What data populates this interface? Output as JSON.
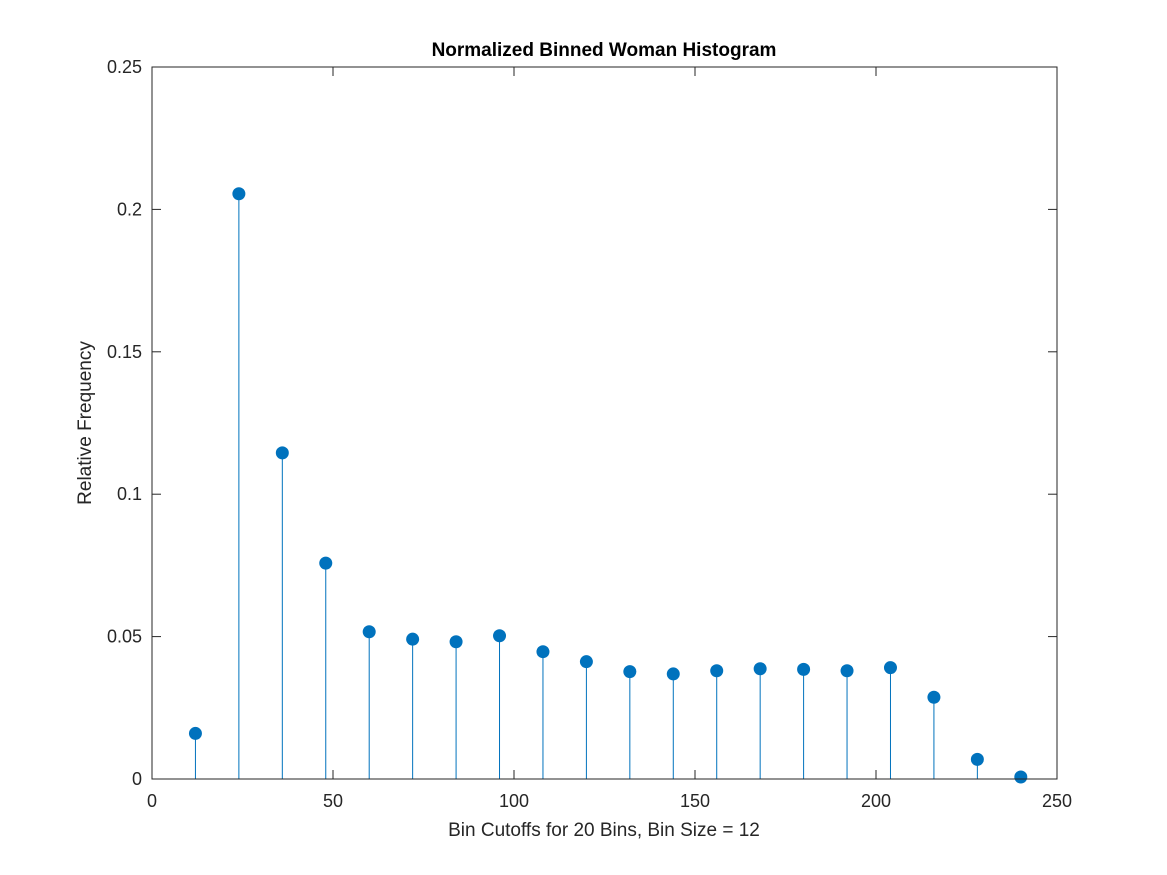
{
  "chart_data": {
    "type": "stem",
    "title": "Normalized Binned Woman Histogram",
    "xlabel": "Bin Cutoffs for 20 Bins, Bin Size = 12",
    "ylabel": "Relative Frequency",
    "xlim": [
      0,
      250
    ],
    "ylim": [
      0,
      0.25
    ],
    "xticks": [
      0,
      50,
      100,
      150,
      200,
      250
    ],
    "yticks": [
      0,
      0.05,
      0.1,
      0.15,
      0.2,
      0.25
    ],
    "xtick_labels": [
      "0",
      "50",
      "100",
      "150",
      "200",
      "250"
    ],
    "ytick_labels": [
      "0",
      "0.05",
      "0.1",
      "0.15",
      "0.2",
      "0.25"
    ],
    "grid": false,
    "color": "#0072BD",
    "x": [
      12,
      24,
      36,
      48,
      60,
      72,
      84,
      96,
      108,
      120,
      132,
      144,
      156,
      168,
      180,
      192,
      204,
      216,
      228,
      240
    ],
    "y": [
      0.016,
      0.2055,
      0.1145,
      0.0758,
      0.0517,
      0.0491,
      0.0482,
      0.0503,
      0.0447,
      0.0412,
      0.0377,
      0.0369,
      0.038,
      0.0387,
      0.0385,
      0.038,
      0.0391,
      0.0287,
      0.0069,
      0.0007
    ]
  }
}
